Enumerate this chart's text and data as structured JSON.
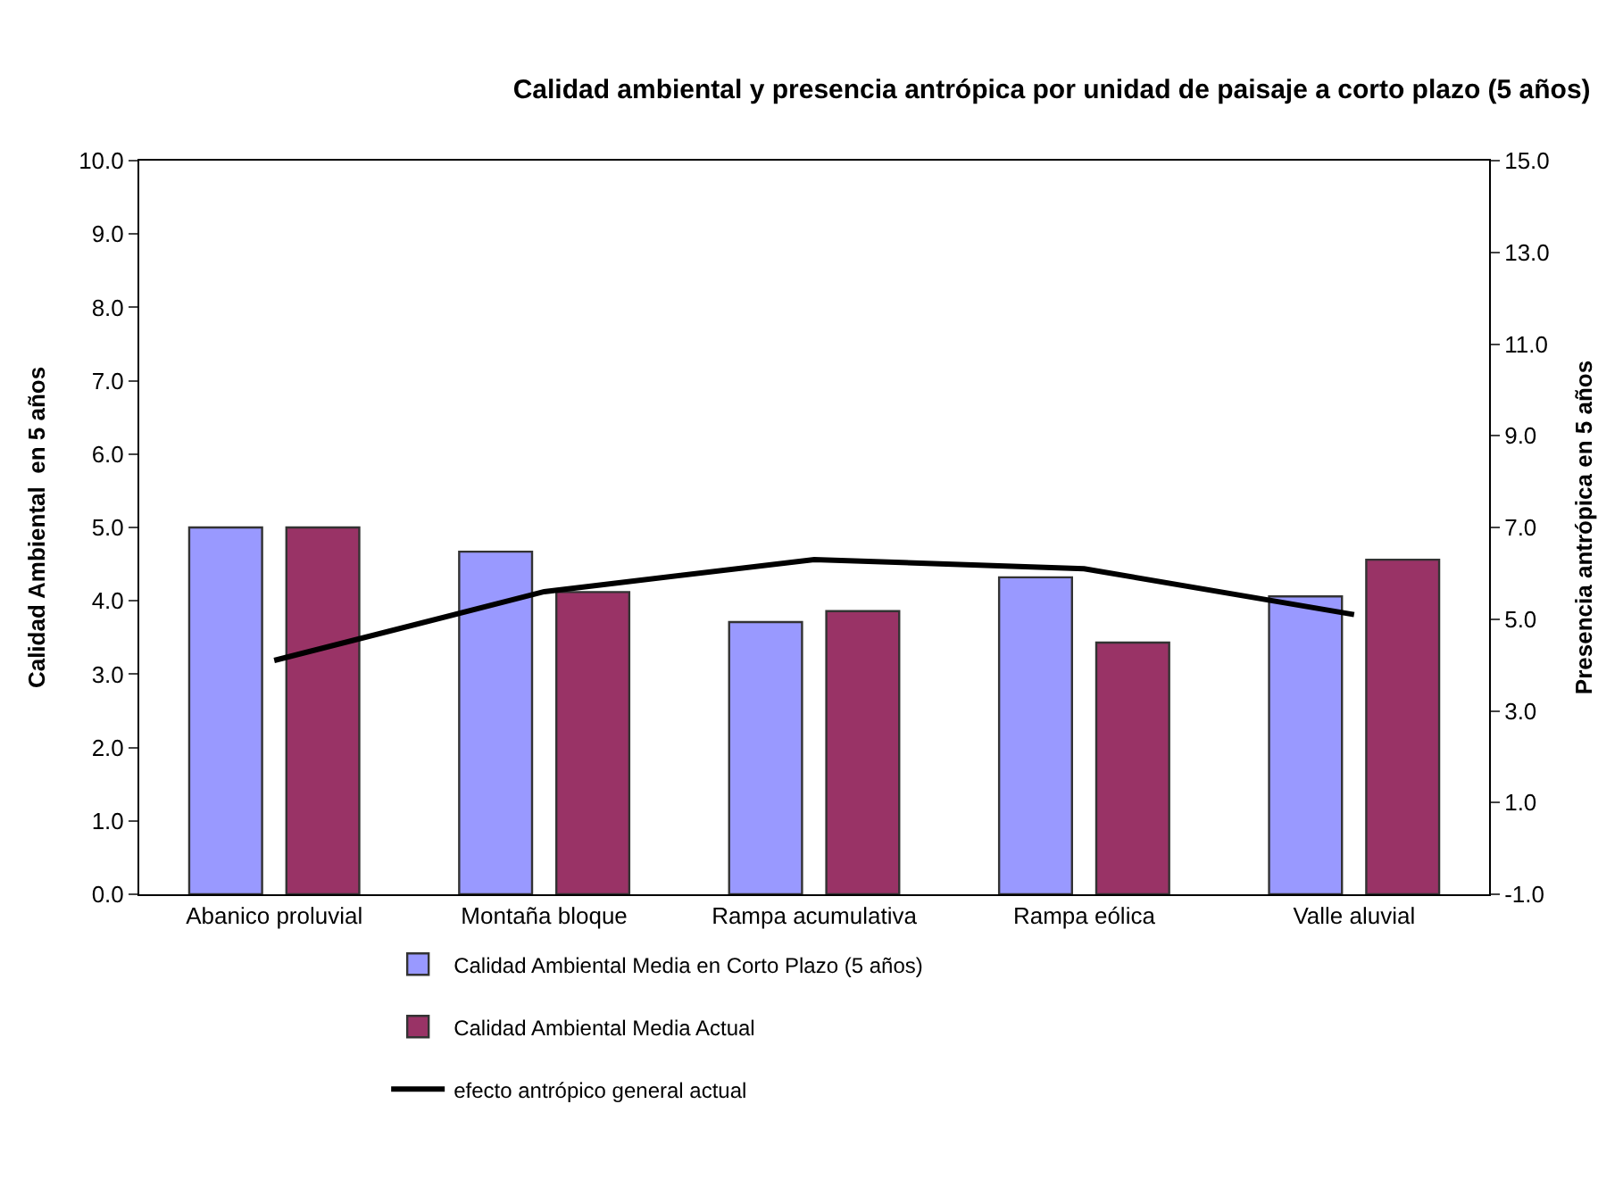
{
  "chart_data": {
    "type": "bar",
    "title": "Calidad ambiental y presencia antrópica por unidad de paisaje a corto plazo (5 años)",
    "ylabel": "Calidad Ambiental  en 5 años",
    "y2label": "Presencia antrópica en 5 años",
    "categories": [
      "Abanico proluvial",
      "Montaña bloque",
      "Rampa acumulativa",
      "Rampa eólica",
      "Valle aluvial"
    ],
    "series": [
      {
        "name": "Calidad Ambiental Media en Corto Plazo (5 años)",
        "color": "#9999ff",
        "values": [
          5.0,
          4.67,
          3.71,
          4.32,
          4.06
        ]
      },
      {
        "name": "Calidad Ambiental Media Actual",
        "color": "#993366",
        "values": [
          5.0,
          4.12,
          3.86,
          3.43,
          4.56
        ]
      },
      {
        "name": "efecto antrópico general actual",
        "type": "line",
        "axis": "y2",
        "color": "#000000",
        "values": [
          4.1,
          5.6,
          6.3,
          6.1,
          5.1
        ]
      }
    ],
    "ylim": [
      0,
      10
    ],
    "yticks": [
      {
        "value": 0,
        "label": "0.0"
      },
      {
        "value": 1,
        "label": "1.0"
      },
      {
        "value": 2,
        "label": "2.0"
      },
      {
        "value": 3,
        "label": "3.0"
      },
      {
        "value": 4,
        "label": "4.0"
      },
      {
        "value": 5,
        "label": "5.0"
      },
      {
        "value": 6,
        "label": "6.0"
      },
      {
        "value": 7,
        "label": "7.0"
      },
      {
        "value": 8,
        "label": "8.0"
      },
      {
        "value": 9,
        "label": "9.0"
      },
      {
        "value": 10,
        "label": "10.0"
      }
    ],
    "y2lim": [
      -1,
      15
    ],
    "y2ticks": [
      {
        "value": -1,
        "label": "-1.0"
      },
      {
        "value": 1,
        "label": "1.0"
      },
      {
        "value": 3,
        "label": "3.0"
      },
      {
        "value": 5,
        "label": "5.0"
      },
      {
        "value": 7,
        "label": "7.0"
      },
      {
        "value": 9,
        "label": "9.0"
      },
      {
        "value": 11,
        "label": "11.0"
      },
      {
        "value": 13,
        "label": "13.0"
      },
      {
        "value": 15,
        "label": "15.0"
      }
    ],
    "legend": "bottom",
    "marker": "none",
    "line_style": "solid"
  }
}
